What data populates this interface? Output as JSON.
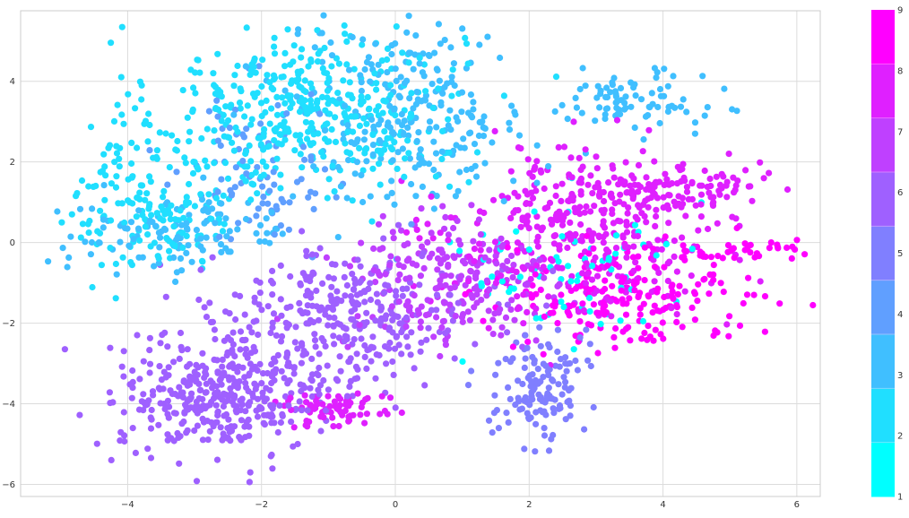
{
  "chart_data": {
    "type": "scatter",
    "title": "",
    "xlabel": "",
    "ylabel": "",
    "xlim": [
      -5.6,
      6.35
    ],
    "ylim": [
      -6.3,
      5.75
    ],
    "x_ticks": [
      -4,
      -2,
      0,
      2,
      4,
      6
    ],
    "y_ticks": [
      -6,
      -4,
      -2,
      0,
      2,
      4
    ],
    "grid": true,
    "colormap": "cool",
    "colorbar": {
      "label": "",
      "min": 1,
      "max": 9,
      "ticks": [
        1,
        2,
        3,
        4,
        5,
        6,
        7,
        8,
        9
      ],
      "colors": [
        "#00ffff",
        "#20dfff",
        "#40bfff",
        "#609fff",
        "#807fff",
        "#9f60ff",
        "#bf40ff",
        "#df20ff",
        "#ff00ff"
      ]
    },
    "clusters": [
      {
        "value": 2,
        "cx": -1.3,
        "cy": 3.3,
        "sx": 1.15,
        "sy": 1.05,
        "n": 420
      },
      {
        "value": 3,
        "cx": 0.2,
        "cy": 3.2,
        "sx": 0.9,
        "sy": 1.1,
        "n": 260
      },
      {
        "value": 2,
        "cx": -3.6,
        "cy": 1.0,
        "sx": 0.6,
        "sy": 0.85,
        "n": 160
      },
      {
        "value": 3,
        "cx": -3.2,
        "cy": 0.2,
        "sx": 0.9,
        "sy": 0.5,
        "n": 120
      },
      {
        "value": 3,
        "cx": 3.5,
        "cy": 3.5,
        "sx": 0.55,
        "sy": 0.35,
        "n": 80
      },
      {
        "value": 6,
        "cx": -2.6,
        "cy": -3.8,
        "sx": 0.75,
        "sy": 0.7,
        "n": 380
      },
      {
        "value": 6,
        "cx": -0.8,
        "cy": -1.9,
        "sx": 1.0,
        "sy": 0.85,
        "n": 330
      },
      {
        "value": 7,
        "cx": 0.8,
        "cy": -1.0,
        "sx": 0.8,
        "sy": 0.9,
        "n": 220
      },
      {
        "value": 8,
        "cx": 2.8,
        "cy": 0.2,
        "sx": 1.0,
        "sy": 1.0,
        "n": 360
      },
      {
        "value": 9,
        "cx": 3.4,
        "cy": -1.3,
        "sx": 0.9,
        "sy": 0.6,
        "n": 200
      },
      {
        "value": 5,
        "cx": 2.15,
        "cy": -3.6,
        "sx": 0.32,
        "sy": 0.7,
        "n": 140
      },
      {
        "value": 8,
        "cx": -0.95,
        "cy": -4.1,
        "sx": 0.4,
        "sy": 0.25,
        "n": 70
      },
      {
        "value": 1,
        "cx": 2.5,
        "cy": -0.6,
        "sx": 0.9,
        "sy": 0.8,
        "n": 70
      },
      {
        "value": 4,
        "cx": -2.0,
        "cy": 1.8,
        "sx": 0.6,
        "sy": 1.0,
        "n": 90
      },
      {
        "value": 8,
        "cx": 4.1,
        "cy": 1.3,
        "sx": 0.7,
        "sy": 0.3,
        "n": 110
      },
      {
        "value": 9,
        "cx": 5.1,
        "cy": -0.2,
        "sx": 0.45,
        "sy": 0.12,
        "n": 40
      }
    ]
  }
}
